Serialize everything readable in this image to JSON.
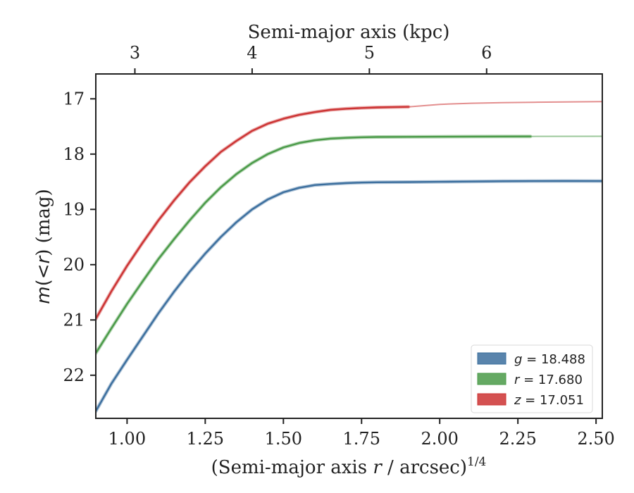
{
  "chart_data": {
    "type": "line",
    "xlabel_main": "(Semi-major axis ",
    "xlabel_var": "r",
    "xlabel_units": " / arcsec)",
    "xlabel_exp": "1/4",
    "x2label": "Semi-major axis (kpc)",
    "ylabel_var": "m",
    "ylabel_mid": "(<",
    "ylabel_r": "r",
    "ylabel_end": ") (mag)",
    "xlim": [
      0.9,
      2.52
    ],
    "ylim": [
      22.78,
      16.55
    ],
    "y_inverted": true,
    "xticks": [
      1.0,
      1.25,
      1.5,
      1.75,
      2.0,
      2.25,
      2.5
    ],
    "xtick_labels": [
      "1.00",
      "1.25",
      "1.50",
      "1.75",
      "2.00",
      "2.25",
      "2.50"
    ],
    "yticks": [
      17,
      18,
      19,
      20,
      21,
      22
    ],
    "ytick_labels": [
      "17",
      "18",
      "19",
      "20",
      "21",
      "22"
    ],
    "x2ticks_at_primary_x": [
      1.025,
      1.4,
      1.775,
      2.15
    ],
    "x2tick_labels": [
      "3",
      "4",
      "5",
      "6"
    ],
    "grid": false,
    "legend_position": "lower-right",
    "series": [
      {
        "name": "g = 18.488",
        "legend_var": "g",
        "legend_value": " = 18.488",
        "color": "#3c6f9e",
        "x": [
          0.9,
          0.95,
          1.0,
          1.05,
          1.1,
          1.15,
          1.2,
          1.25,
          1.3,
          1.35,
          1.4,
          1.45,
          1.5,
          1.55,
          1.6,
          1.65,
          1.7,
          1.75,
          1.8,
          1.9,
          2.0,
          2.1,
          2.2,
          2.3,
          2.4,
          2.52
        ],
        "y": [
          22.65,
          22.15,
          21.72,
          21.3,
          20.88,
          20.49,
          20.13,
          19.8,
          19.5,
          19.23,
          19.0,
          18.82,
          18.69,
          18.61,
          18.56,
          18.54,
          18.525,
          18.515,
          18.51,
          18.505,
          18.5,
          18.495,
          18.49,
          18.488,
          18.486,
          18.488
        ]
      },
      {
        "name": "r = 17.680",
        "legend_var": "r",
        "legend_value": " = 17.680",
        "color": "#4a9a48",
        "x": [
          0.9,
          0.95,
          1.0,
          1.05,
          1.1,
          1.15,
          1.2,
          1.25,
          1.3,
          1.35,
          1.4,
          1.45,
          1.5,
          1.55,
          1.6,
          1.65,
          1.7,
          1.75,
          1.8,
          1.9,
          2.0,
          2.1,
          2.2,
          2.29
        ],
        "y": [
          21.6,
          21.15,
          20.71,
          20.3,
          19.9,
          19.54,
          19.2,
          18.88,
          18.6,
          18.36,
          18.16,
          18.0,
          17.88,
          17.8,
          17.75,
          17.72,
          17.705,
          17.695,
          17.69,
          17.688,
          17.685,
          17.683,
          17.681,
          17.68
        ],
        "faded_x": [
          2.29,
          2.52
        ],
        "faded_y": [
          17.68,
          17.678
        ]
      },
      {
        "name": "z = 17.051",
        "legend_var": "z",
        "legend_value": " = 17.051",
        "color": "#cc3333",
        "x": [
          0.9,
          0.95,
          1.0,
          1.05,
          1.1,
          1.15,
          1.2,
          1.25,
          1.3,
          1.35,
          1.4,
          1.45,
          1.5,
          1.55,
          1.6,
          1.65,
          1.7,
          1.75,
          1.8,
          1.85,
          1.9
        ],
        "y": [
          20.98,
          20.48,
          20.02,
          19.6,
          19.2,
          18.84,
          18.51,
          18.22,
          17.96,
          17.76,
          17.58,
          17.45,
          17.36,
          17.29,
          17.24,
          17.2,
          17.18,
          17.165,
          17.155,
          17.15,
          17.145
        ],
        "faded_x": [
          1.9,
          2.0,
          2.1,
          2.2,
          2.3,
          2.4,
          2.52
        ],
        "faded_y": [
          17.145,
          17.1,
          17.08,
          17.07,
          17.062,
          17.056,
          17.051
        ]
      }
    ]
  }
}
